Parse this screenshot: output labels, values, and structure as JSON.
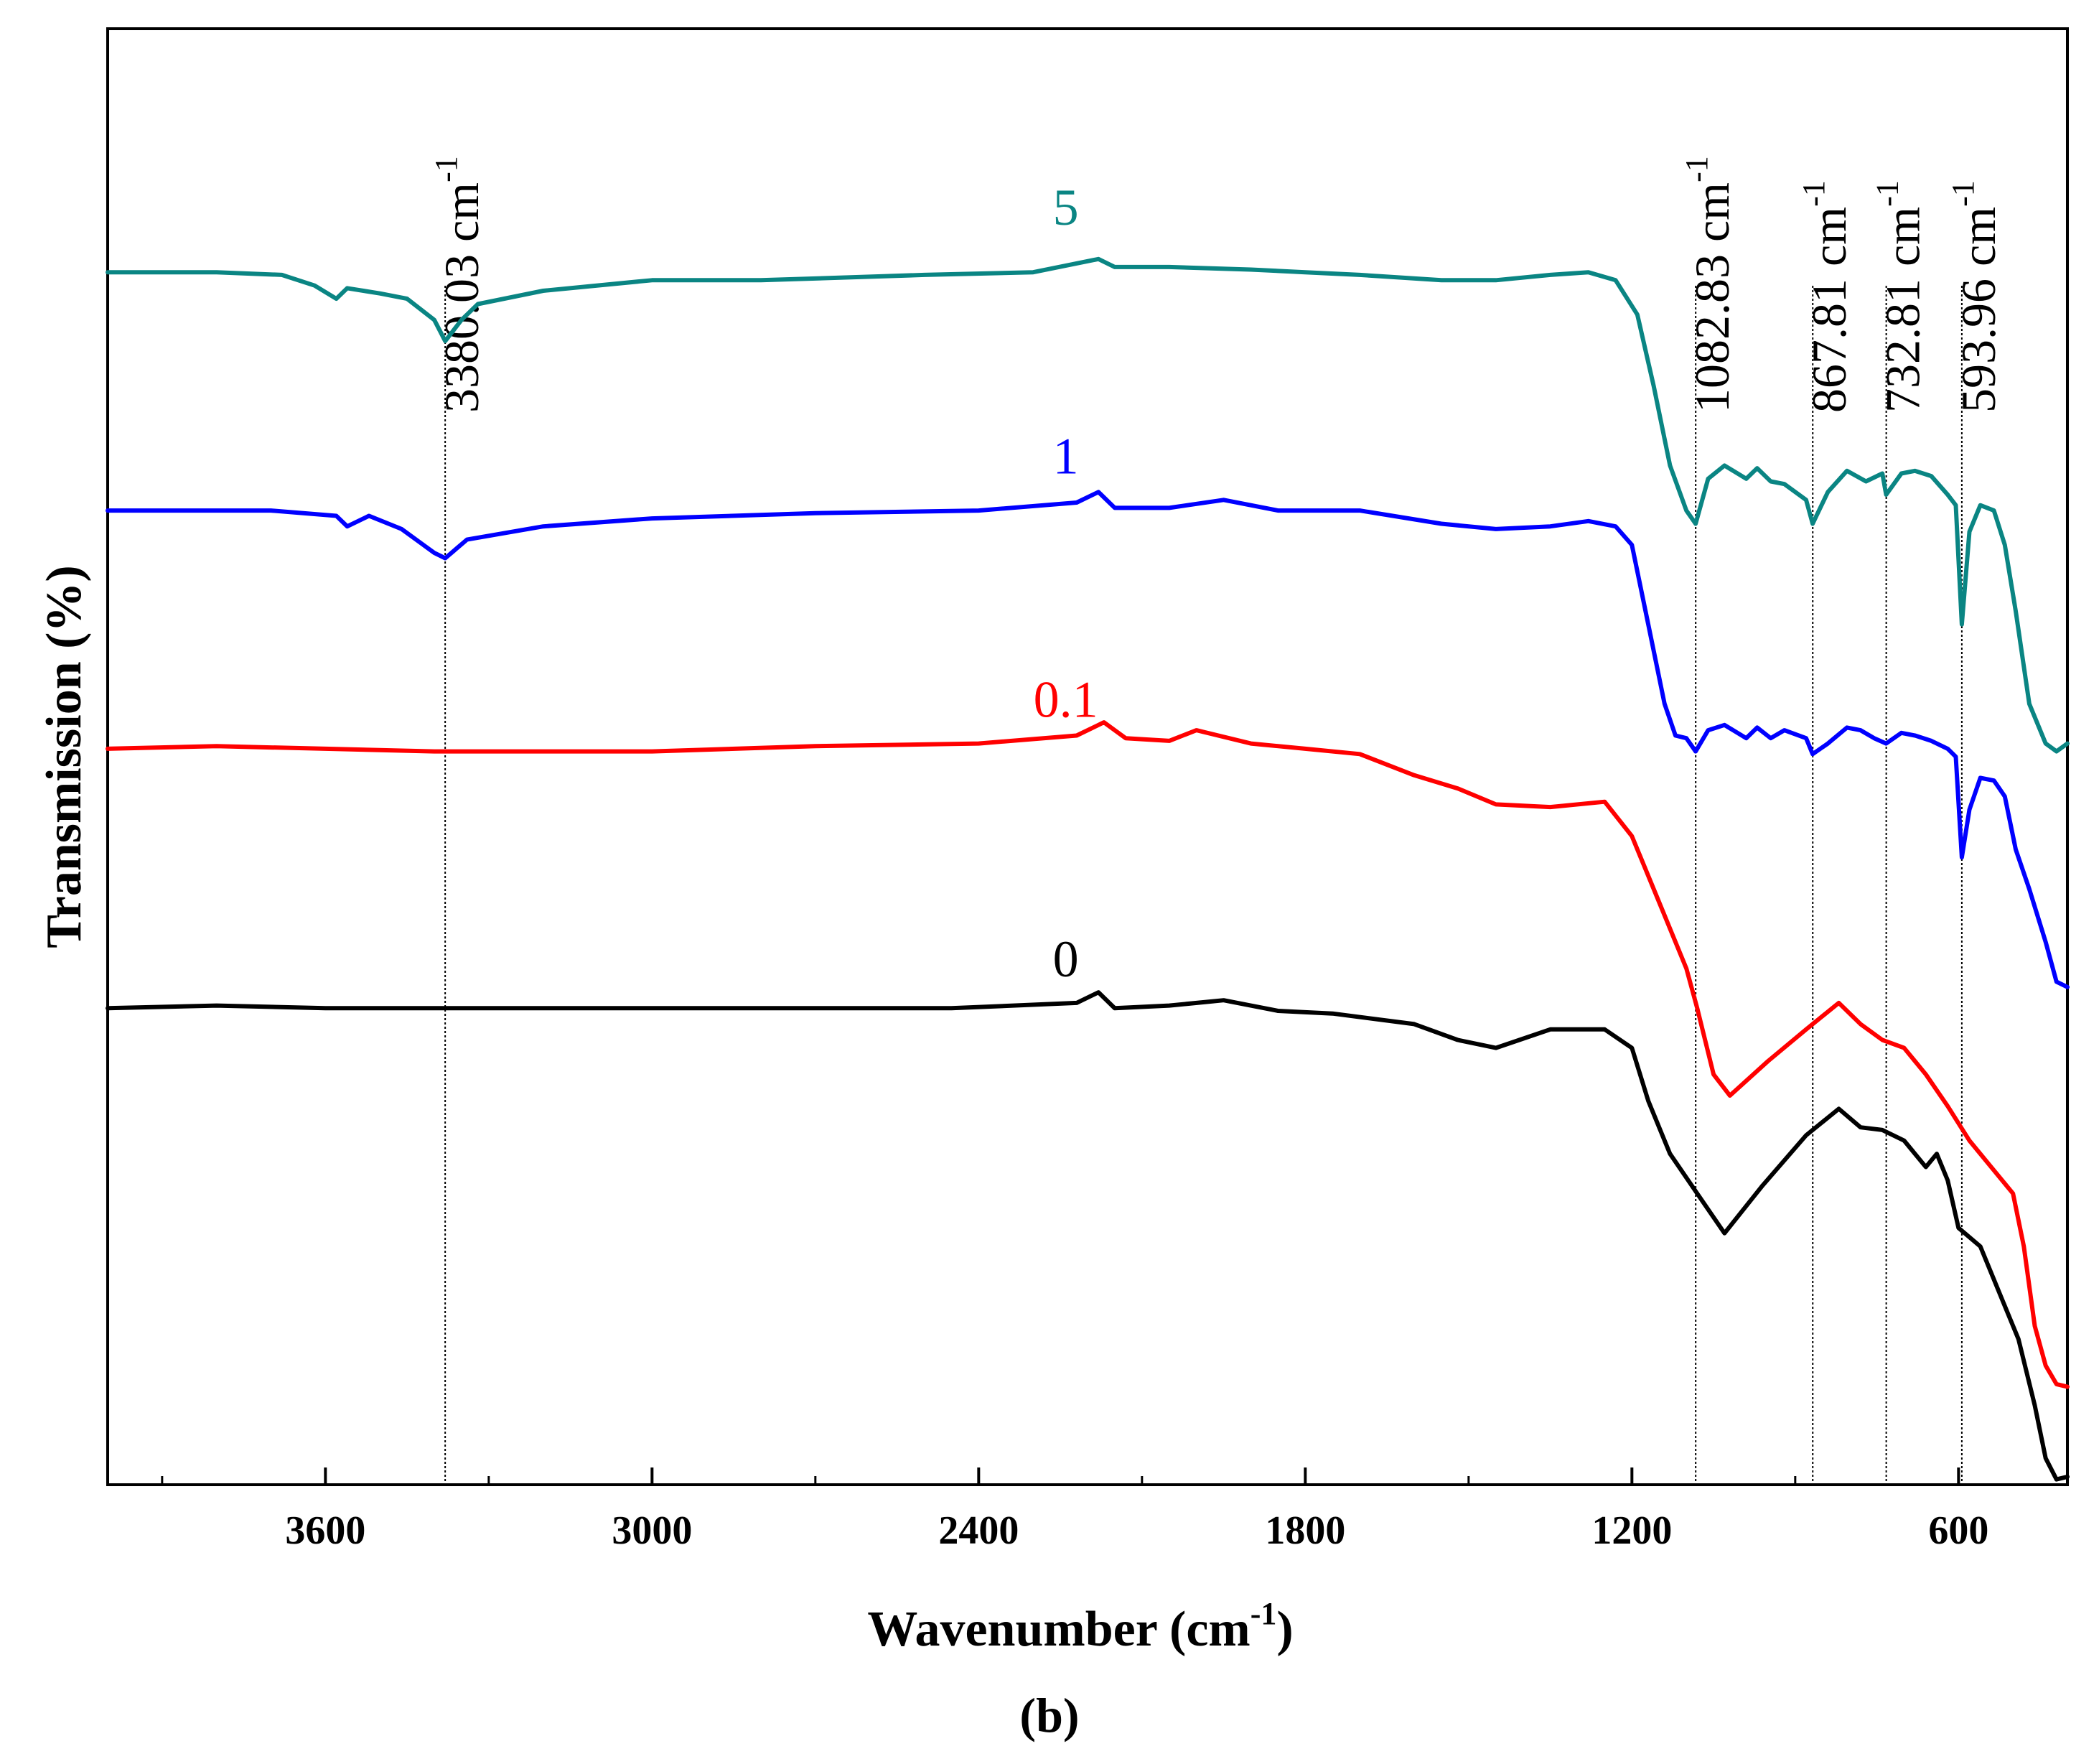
{
  "chart_data": {
    "type": "line",
    "title": "",
    "xlabel": "Wavenumber (cm",
    "xlabel_sup": "-1",
    "xlabel_close": ")",
    "ylabel": "Transmission (%)",
    "xlim": [
      4000,
      400
    ],
    "x_reversed": true,
    "y_ticks_shown": false,
    "grid": false,
    "x_ticks": [
      3600,
      3000,
      2400,
      1800,
      1200,
      600
    ],
    "x_tick_labels": [
      "3600",
      "3000",
      "2400",
      "1800",
      "1200",
      "600"
    ],
    "x_minor_ticks": [
      3900,
      3300,
      2700,
      2100,
      1500,
      900
    ],
    "panel_label": "(b)",
    "panel_letter": "b",
    "series": [
      {
        "name": "0",
        "color": "#000000",
        "points": [
          [
            4000,
            1.8
          ],
          [
            3800,
            1.81
          ],
          [
            3600,
            1.8
          ],
          [
            3400,
            1.8
          ],
          [
            3000,
            1.8
          ],
          [
            2700,
            1.8
          ],
          [
            2450,
            1.8
          ],
          [
            2220,
            1.82
          ],
          [
            2180,
            1.86
          ],
          [
            2150,
            1.8
          ],
          [
            2050,
            1.81
          ],
          [
            1950,
            1.83
          ],
          [
            1850,
            1.79
          ],
          [
            1750,
            1.78
          ],
          [
            1600,
            1.74
          ],
          [
            1520,
            1.68
          ],
          [
            1450,
            1.65
          ],
          [
            1350,
            1.72
          ],
          [
            1250,
            1.72
          ],
          [
            1200,
            1.65
          ],
          [
            1170,
            1.45
          ],
          [
            1130,
            1.25
          ],
          [
            1080,
            1.1
          ],
          [
            1030,
            0.95
          ],
          [
            960,
            1.13
          ],
          [
            880,
            1.32
          ],
          [
            820,
            1.42
          ],
          [
            780,
            1.35
          ],
          [
            740,
            1.34
          ],
          [
            700,
            1.3
          ],
          [
            660,
            1.2
          ],
          [
            640,
            1.25
          ],
          [
            620,
            1.15
          ],
          [
            600,
            0.97
          ],
          [
            560,
            0.9
          ],
          [
            520,
            0.7
          ],
          [
            490,
            0.55
          ],
          [
            460,
            0.3
          ],
          [
            440,
            0.1
          ],
          [
            420,
            0.02
          ],
          [
            400,
            0.03
          ]
        ]
      },
      {
        "name": "0.1",
        "color": "#ff0000",
        "points": [
          [
            4000,
            2.78
          ],
          [
            3800,
            2.79
          ],
          [
            3600,
            2.78
          ],
          [
            3400,
            2.77
          ],
          [
            3000,
            2.77
          ],
          [
            2700,
            2.79
          ],
          [
            2400,
            2.8
          ],
          [
            2220,
            2.83
          ],
          [
            2170,
            2.88
          ],
          [
            2130,
            2.82
          ],
          [
            2050,
            2.81
          ],
          [
            2000,
            2.85
          ],
          [
            1900,
            2.8
          ],
          [
            1800,
            2.78
          ],
          [
            1700,
            2.76
          ],
          [
            1600,
            2.68
          ],
          [
            1520,
            2.63
          ],
          [
            1450,
            2.57
          ],
          [
            1350,
            2.56
          ],
          [
            1250,
            2.58
          ],
          [
            1200,
            2.45
          ],
          [
            1150,
            2.2
          ],
          [
            1100,
            1.95
          ],
          [
            1080,
            1.8
          ],
          [
            1050,
            1.55
          ],
          [
            1020,
            1.47
          ],
          [
            950,
            1.6
          ],
          [
            880,
            1.72
          ],
          [
            820,
            1.82
          ],
          [
            780,
            1.74
          ],
          [
            740,
            1.68
          ],
          [
            700,
            1.65
          ],
          [
            660,
            1.55
          ],
          [
            620,
            1.43
          ],
          [
            580,
            1.3
          ],
          [
            540,
            1.2
          ],
          [
            500,
            1.1
          ],
          [
            480,
            0.9
          ],
          [
            460,
            0.6
          ],
          [
            440,
            0.45
          ],
          [
            420,
            0.38
          ],
          [
            400,
            0.37
          ]
        ]
      },
      {
        "name": "1",
        "color": "#0000ff",
        "points": [
          [
            4000,
            3.68
          ],
          [
            3700,
            3.68
          ],
          [
            3580,
            3.66
          ],
          [
            3560,
            3.62
          ],
          [
            3520,
            3.66
          ],
          [
            3460,
            3.61
          ],
          [
            3420,
            3.55
          ],
          [
            3400,
            3.52
          ],
          [
            3380,
            3.5
          ],
          [
            3340,
            3.57
          ],
          [
            3200,
            3.62
          ],
          [
            3000,
            3.65
          ],
          [
            2700,
            3.67
          ],
          [
            2400,
            3.68
          ],
          [
            2220,
            3.71
          ],
          [
            2180,
            3.75
          ],
          [
            2150,
            3.69
          ],
          [
            2050,
            3.69
          ],
          [
            1950,
            3.72
          ],
          [
            1850,
            3.68
          ],
          [
            1700,
            3.68
          ],
          [
            1550,
            3.63
          ],
          [
            1450,
            3.61
          ],
          [
            1350,
            3.62
          ],
          [
            1280,
            3.64
          ],
          [
            1230,
            3.62
          ],
          [
            1200,
            3.55
          ],
          [
            1170,
            3.25
          ],
          [
            1140,
            2.95
          ],
          [
            1120,
            2.83
          ],
          [
            1100,
            2.82
          ],
          [
            1083,
            2.77
          ],
          [
            1060,
            2.85
          ],
          [
            1030,
            2.87
          ],
          [
            990,
            2.82
          ],
          [
            970,
            2.86
          ],
          [
            945,
            2.82
          ],
          [
            920,
            2.85
          ],
          [
            880,
            2.82
          ],
          [
            868,
            2.76
          ],
          [
            840,
            2.8
          ],
          [
            805,
            2.86
          ],
          [
            780,
            2.85
          ],
          [
            755,
            2.82
          ],
          [
            733,
            2.8
          ],
          [
            705,
            2.84
          ],
          [
            680,
            2.83
          ],
          [
            650,
            2.81
          ],
          [
            620,
            2.78
          ],
          [
            605,
            2.75
          ],
          [
            594,
            2.37
          ],
          [
            580,
            2.55
          ],
          [
            560,
            2.67
          ],
          [
            535,
            2.66
          ],
          [
            515,
            2.6
          ],
          [
            495,
            2.4
          ],
          [
            470,
            2.25
          ],
          [
            440,
            2.05
          ],
          [
            420,
            1.9
          ],
          [
            400,
            1.88
          ]
        ]
      },
      {
        "name": "5",
        "color": "#0a8583",
        "points": [
          [
            4000,
            4.58
          ],
          [
            3800,
            4.58
          ],
          [
            3680,
            4.57
          ],
          [
            3620,
            4.53
          ],
          [
            3580,
            4.48
          ],
          [
            3560,
            4.52
          ],
          [
            3500,
            4.5
          ],
          [
            3450,
            4.48
          ],
          [
            3400,
            4.4
          ],
          [
            3380,
            4.32
          ],
          [
            3350,
            4.4
          ],
          [
            3320,
            4.46
          ],
          [
            3200,
            4.51
          ],
          [
            3000,
            4.55
          ],
          [
            2800,
            4.55
          ],
          [
            2500,
            4.57
          ],
          [
            2300,
            4.58
          ],
          [
            2180,
            4.63
          ],
          [
            2150,
            4.6
          ],
          [
            2050,
            4.6
          ],
          [
            1900,
            4.59
          ],
          [
            1800,
            4.58
          ],
          [
            1700,
            4.57
          ],
          [
            1550,
            4.55
          ],
          [
            1450,
            4.55
          ],
          [
            1350,
            4.57
          ],
          [
            1280,
            4.58
          ],
          [
            1230,
            4.55
          ],
          [
            1190,
            4.42
          ],
          [
            1160,
            4.15
          ],
          [
            1130,
            3.85
          ],
          [
            1100,
            3.68
          ],
          [
            1083,
            3.63
          ],
          [
            1060,
            3.8
          ],
          [
            1030,
            3.85
          ],
          [
            990,
            3.8
          ],
          [
            970,
            3.84
          ],
          [
            945,
            3.79
          ],
          [
            920,
            3.78
          ],
          [
            880,
            3.72
          ],
          [
            868,
            3.63
          ],
          [
            840,
            3.75
          ],
          [
            805,
            3.83
          ],
          [
            770,
            3.79
          ],
          [
            740,
            3.82
          ],
          [
            733,
            3.74
          ],
          [
            705,
            3.82
          ],
          [
            680,
            3.83
          ],
          [
            650,
            3.81
          ],
          [
            620,
            3.74
          ],
          [
            605,
            3.7
          ],
          [
            594,
            3.25
          ],
          [
            580,
            3.6
          ],
          [
            560,
            3.7
          ],
          [
            535,
            3.68
          ],
          [
            515,
            3.55
          ],
          [
            495,
            3.3
          ],
          [
            470,
            2.95
          ],
          [
            440,
            2.8
          ],
          [
            420,
            2.77
          ],
          [
            400,
            2.8
          ]
        ]
      }
    ],
    "series_labels": [
      {
        "text": "5",
        "x": 2240,
        "y": 4.76,
        "color": "#0a8583"
      },
      {
        "text": "1",
        "x": 2240,
        "y": 3.82,
        "color": "#0000ff"
      },
      {
        "text": "0.1",
        "x": 2240,
        "y": 2.9,
        "color": "#ff0000"
      },
      {
        "text": "0",
        "x": 2240,
        "y": 1.92,
        "color": "#000000"
      }
    ],
    "peak_lines": [
      {
        "x": 3380.03,
        "label": "3380.03 cm",
        "sup": "-1"
      },
      {
        "x": 1082.83,
        "label": "1082.83 cm",
        "sup": "-1"
      },
      {
        "x": 867.81,
        "label": "867.81 cm",
        "sup": "-1"
      },
      {
        "x": 732.81,
        "label": "732.81 cm",
        "sup": "-1"
      },
      {
        "x": 593.96,
        "label": "593.96 cm",
        "sup": "-1"
      }
    ],
    "ylim": [
      0,
      5.5
    ]
  }
}
